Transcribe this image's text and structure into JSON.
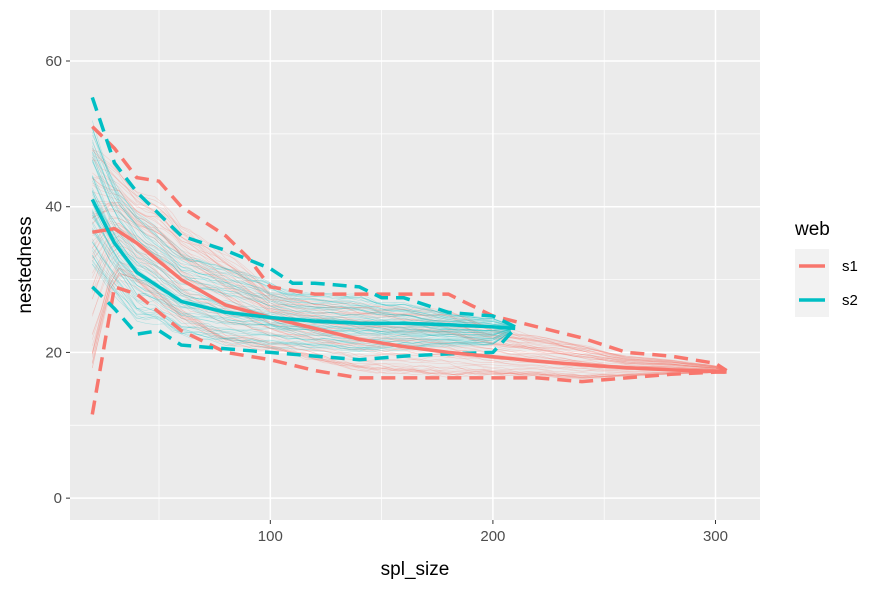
{
  "chart_data": {
    "type": "line",
    "title": "",
    "xlabel": "spl_size",
    "ylabel": "nestedness",
    "xlim": [
      10,
      320
    ],
    "ylim": [
      -3,
      67
    ],
    "x_ticks": [
      100,
      200,
      300
    ],
    "y_ticks": [
      0,
      20,
      40,
      60
    ],
    "x_minor": [
      50,
      150,
      250
    ],
    "y_minor": [
      10,
      30,
      50
    ],
    "legend": {
      "title": "web",
      "position": "right",
      "entries": [
        "s1",
        "s2"
      ]
    },
    "series": [
      {
        "name": "s1",
        "color": "#F8766D",
        "mean": {
          "x": [
            20,
            30,
            40,
            60,
            80,
            100,
            120,
            140,
            160,
            180,
            200,
            220,
            240,
            260,
            280,
            300,
            305
          ],
          "y": [
            36.5,
            37.0,
            35.0,
            30.0,
            26.5,
            24.8,
            23.3,
            21.8,
            20.8,
            20.0,
            19.4,
            18.8,
            18.3,
            17.9,
            17.6,
            17.4,
            17.3
          ]
        },
        "upper": {
          "x": [
            20,
            30,
            40,
            50,
            60,
            80,
            90,
            100,
            120,
            140,
            160,
            180,
            200,
            220,
            240,
            260,
            280,
            300,
            305
          ],
          "y": [
            51.0,
            48.0,
            44.0,
            43.5,
            40.0,
            36.0,
            33.0,
            29.0,
            28.0,
            28.0,
            28.0,
            28.0,
            25.0,
            23.5,
            22.0,
            20.0,
            19.5,
            18.5,
            17.5
          ]
        },
        "lower": {
          "x": [
            20,
            30,
            40,
            60,
            80,
            100,
            120,
            140,
            160,
            180,
            200,
            220,
            240,
            260,
            280,
            300,
            305
          ],
          "y": [
            11.5,
            29.0,
            28.0,
            23.0,
            20.0,
            19.0,
            17.5,
            16.5,
            16.5,
            16.5,
            16.5,
            16.5,
            16.0,
            16.5,
            17.0,
            17.3,
            17.3
          ]
        }
      },
      {
        "name": "s2",
        "color": "#00BFC4",
        "mean": {
          "x": [
            20,
            30,
            40,
            50,
            60,
            80,
            100,
            120,
            140,
            160,
            180,
            200,
            210
          ],
          "y": [
            41.0,
            35.0,
            31.0,
            29.0,
            27.0,
            25.5,
            24.8,
            24.3,
            24.0,
            24.0,
            23.8,
            23.5,
            23.3
          ]
        },
        "upper": {
          "x": [
            20,
            30,
            40,
            50,
            60,
            80,
            100,
            110,
            120,
            140,
            150,
            160,
            180,
            200,
            210
          ],
          "y": [
            55.0,
            46.0,
            42.0,
            39.0,
            36.0,
            34.0,
            31.5,
            29.5,
            29.5,
            29.0,
            27.5,
            27.5,
            25.5,
            25.0,
            23.5
          ]
        },
        "lower": {
          "x": [
            20,
            30,
            40,
            50,
            60,
            80,
            100,
            120,
            140,
            160,
            180,
            200,
            210
          ],
          "y": [
            29.0,
            26.0,
            22.5,
            23.0,
            21.0,
            20.5,
            20.0,
            19.5,
            19.0,
            19.5,
            19.8,
            20.0,
            23.3
          ]
        },
        "sample_count": 60
      }
    ]
  }
}
